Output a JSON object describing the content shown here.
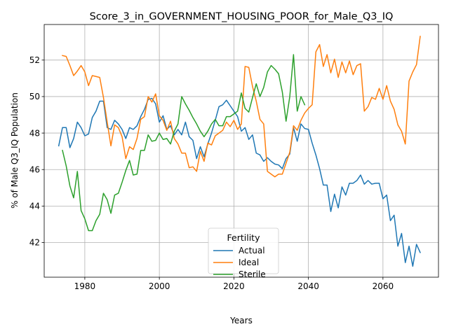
{
  "chart_data": {
    "type": "line",
    "title": "Score_3_in_GOVERNMENT_HOUSING_POOR_for_Male_Q3_IQ",
    "xlabel": "Years",
    "ylabel": "% of Male Q3_IQ Population",
    "xlim": [
      1969.1,
      2074.9
    ],
    "ylim": [
      40.1,
      53.95
    ],
    "xticks": [
      1980,
      2000,
      2020,
      2040,
      2060
    ],
    "yticks": [
      42,
      44,
      46,
      48,
      50,
      52
    ],
    "grid": true,
    "legend": {
      "title": "Fertility",
      "placement": "lower-center"
    },
    "series": [
      {
        "name": "Actual",
        "color": "#1f77b4",
        "points": [
          [
            1973,
            47.3
          ],
          [
            1974,
            48.3
          ],
          [
            1975,
            48.3
          ],
          [
            1976,
            47.2
          ],
          [
            1977,
            47.7
          ],
          [
            1978,
            48.6
          ],
          [
            1979,
            48.3
          ],
          [
            1980,
            47.85
          ],
          [
            1981,
            47.95
          ],
          [
            1982,
            48.85
          ],
          [
            1983,
            49.2
          ],
          [
            1984,
            49.75
          ],
          [
            1985,
            49.75
          ],
          [
            1986,
            48.3
          ],
          [
            1987,
            48.2
          ],
          [
            1988,
            48.7
          ],
          [
            1989,
            48.5
          ],
          [
            1990,
            48.2
          ],
          [
            1991,
            47.7
          ],
          [
            1992,
            48.3
          ],
          [
            1993,
            48.2
          ],
          [
            1994,
            48.4
          ],
          [
            1995,
            48.9
          ],
          [
            1996,
            49.3
          ],
          [
            1997,
            49.85
          ],
          [
            1998,
            49.9
          ],
          [
            1999,
            49.6
          ],
          [
            2000,
            48.6
          ],
          [
            2001,
            48.95
          ],
          [
            2002,
            48.2
          ],
          [
            2003,
            48.4
          ],
          [
            2004,
            47.9
          ],
          [
            2005,
            48.2
          ],
          [
            2006,
            47.9
          ],
          [
            2007,
            48.6
          ],
          [
            2008,
            47.8
          ],
          [
            2009,
            47.6
          ],
          [
            2010,
            46.6
          ],
          [
            2011,
            47.25
          ],
          [
            2012,
            46.7
          ],
          [
            2013,
            47.4
          ],
          [
            2014,
            48.0
          ],
          [
            2015,
            48.7
          ],
          [
            2016,
            49.45
          ],
          [
            2017,
            49.55
          ],
          [
            2018,
            49.8
          ],
          [
            2019,
            49.5
          ],
          [
            2020,
            49.2
          ],
          [
            2021,
            48.9
          ],
          [
            2022,
            48.1
          ],
          [
            2023,
            48.3
          ],
          [
            2024,
            47.65
          ],
          [
            2025,
            47.9
          ],
          [
            2026,
            46.9
          ],
          [
            2027,
            46.8
          ],
          [
            2028,
            46.45
          ],
          [
            2029,
            46.65
          ],
          [
            2030,
            46.45
          ],
          [
            2031,
            46.3
          ],
          [
            2032,
            46.25
          ],
          [
            2033,
            46.05
          ],
          [
            2034,
            46.6
          ],
          [
            2035,
            46.85
          ],
          [
            2036,
            48.3
          ],
          [
            2037,
            47.55
          ],
          [
            2038,
            48.5
          ],
          [
            2039,
            48.25
          ],
          [
            2040,
            48.2
          ],
          [
            2041,
            47.45
          ],
          [
            2042,
            46.8
          ],
          [
            2043,
            46.05
          ],
          [
            2044,
            45.15
          ],
          [
            2045,
            45.15
          ],
          [
            2046,
            43.7
          ],
          [
            2047,
            44.65
          ],
          [
            2048,
            43.9
          ],
          [
            2049,
            45.05
          ],
          [
            2050,
            44.6
          ],
          [
            2051,
            45.25
          ],
          [
            2052,
            45.25
          ],
          [
            2053,
            45.4
          ],
          [
            2054,
            45.7
          ],
          [
            2055,
            45.2
          ],
          [
            2056,
            45.4
          ],
          [
            2057,
            45.2
          ],
          [
            2058,
            45.25
          ],
          [
            2059,
            45.25
          ],
          [
            2060,
            44.4
          ],
          [
            2061,
            44.6
          ],
          [
            2062,
            43.2
          ],
          [
            2063,
            43.5
          ],
          [
            2064,
            41.8
          ],
          [
            2065,
            42.5
          ],
          [
            2066,
            40.9
          ],
          [
            2067,
            41.8
          ],
          [
            2068,
            40.7
          ],
          [
            2069,
            41.9
          ],
          [
            2070,
            41.45
          ]
        ]
      },
      {
        "name": "Ideal",
        "color": "#ff7f0e",
        "points": [
          [
            1974,
            52.25
          ],
          [
            1975,
            52.2
          ],
          [
            1976,
            51.7
          ],
          [
            1977,
            51.15
          ],
          [
            1978,
            51.4
          ],
          [
            1979,
            51.7
          ],
          [
            1980,
            51.35
          ],
          [
            1981,
            50.6
          ],
          [
            1982,
            51.15
          ],
          [
            1983,
            51.1
          ],
          [
            1984,
            51.05
          ],
          [
            1985,
            49.95
          ],
          [
            1986,
            48.6
          ],
          [
            1987,
            47.3
          ],
          [
            1988,
            48.45
          ],
          [
            1989,
            48.3
          ],
          [
            1990,
            47.8
          ],
          [
            1991,
            46.6
          ],
          [
            1992,
            47.25
          ],
          [
            1993,
            47.1
          ],
          [
            1994,
            47.7
          ],
          [
            1995,
            48.75
          ],
          [
            1996,
            48.9
          ],
          [
            1997,
            50.0
          ],
          [
            1998,
            49.7
          ],
          [
            1999,
            50.15
          ],
          [
            2000,
            48.95
          ],
          [
            2001,
            48.7
          ],
          [
            2002,
            48.15
          ],
          [
            2003,
            48.65
          ],
          [
            2004,
            47.7
          ],
          [
            2005,
            47.4
          ],
          [
            2006,
            46.9
          ],
          [
            2007,
            46.9
          ],
          [
            2008,
            46.1
          ],
          [
            2009,
            46.15
          ],
          [
            2010,
            45.9
          ],
          [
            2011,
            47.0
          ],
          [
            2012,
            46.45
          ],
          [
            2013,
            47.45
          ],
          [
            2014,
            47.35
          ],
          [
            2015,
            47.85
          ],
          [
            2016,
            48.0
          ],
          [
            2017,
            48.15
          ],
          [
            2018,
            48.6
          ],
          [
            2019,
            48.35
          ],
          [
            2020,
            48.7
          ],
          [
            2021,
            48.2
          ],
          [
            2022,
            48.5
          ],
          [
            2023,
            51.65
          ],
          [
            2024,
            51.6
          ],
          [
            2025,
            50.55
          ],
          [
            2026,
            49.75
          ],
          [
            2027,
            48.75
          ],
          [
            2028,
            48.5
          ],
          [
            2029,
            45.9
          ],
          [
            2030,
            45.75
          ],
          [
            2031,
            45.6
          ],
          [
            2032,
            45.75
          ],
          [
            2033,
            45.75
          ],
          [
            2034,
            46.35
          ],
          [
            2035,
            46.95
          ],
          [
            2036,
            48.4
          ],
          [
            2037,
            48.15
          ],
          [
            2038,
            48.7
          ],
          [
            2039,
            49.1
          ],
          [
            2040,
            49.35
          ],
          [
            2041,
            49.55
          ],
          [
            2042,
            52.45
          ],
          [
            2043,
            52.85
          ],
          [
            2044,
            51.65
          ],
          [
            2045,
            52.3
          ],
          [
            2046,
            51.3
          ],
          [
            2047,
            52.05
          ],
          [
            2048,
            51.05
          ],
          [
            2049,
            51.9
          ],
          [
            2050,
            51.3
          ],
          [
            2051,
            51.95
          ],
          [
            2052,
            51.2
          ],
          [
            2053,
            51.7
          ],
          [
            2054,
            51.8
          ],
          [
            2055,
            49.2
          ],
          [
            2056,
            49.45
          ],
          [
            2057,
            49.95
          ],
          [
            2058,
            49.85
          ],
          [
            2059,
            50.45
          ],
          [
            2060,
            49.85
          ],
          [
            2061,
            50.6
          ],
          [
            2062,
            49.75
          ],
          [
            2063,
            49.3
          ],
          [
            2064,
            48.45
          ],
          [
            2065,
            48.1
          ],
          [
            2066,
            47.4
          ],
          [
            2067,
            50.85
          ],
          [
            2068,
            51.35
          ],
          [
            2069,
            51.75
          ],
          [
            2070,
            53.3
          ]
        ]
      },
      {
        "name": "Sterile",
        "color": "#2ca02c",
        "points": [
          [
            1974,
            47.05
          ],
          [
            1975,
            46.2
          ],
          [
            1976,
            45.1
          ],
          [
            1977,
            44.45
          ],
          [
            1978,
            45.9
          ],
          [
            1979,
            43.75
          ],
          [
            1980,
            43.3
          ],
          [
            1981,
            42.65
          ],
          [
            1982,
            42.65
          ],
          [
            1983,
            43.2
          ],
          [
            1984,
            43.55
          ],
          [
            1985,
            44.7
          ],
          [
            1986,
            44.35
          ],
          [
            1987,
            43.6
          ],
          [
            1988,
            44.6
          ],
          [
            1989,
            44.7
          ],
          [
            1990,
            45.3
          ],
          [
            1991,
            45.95
          ],
          [
            1992,
            46.5
          ],
          [
            1993,
            45.7
          ],
          [
            1994,
            45.75
          ],
          [
            1995,
            47.05
          ],
          [
            1996,
            47.05
          ],
          [
            1997,
            47.9
          ],
          [
            1998,
            47.55
          ],
          [
            1999,
            47.6
          ],
          [
            2000,
            48.0
          ],
          [
            2001,
            47.65
          ],
          [
            2002,
            47.7
          ],
          [
            2003,
            47.4
          ],
          [
            2004,
            48.1
          ],
          [
            2005,
            48.5
          ],
          [
            2006,
            50.0
          ],
          [
            2007,
            49.6
          ],
          [
            2008,
            49.25
          ],
          [
            2009,
            48.85
          ],
          [
            2010,
            48.5
          ],
          [
            2011,
            48.1
          ],
          [
            2012,
            47.8
          ],
          [
            2013,
            48.1
          ],
          [
            2014,
            48.5
          ],
          [
            2015,
            48.75
          ],
          [
            2016,
            48.4
          ],
          [
            2017,
            48.4
          ],
          [
            2018,
            48.9
          ],
          [
            2019,
            48.9
          ],
          [
            2020,
            49.05
          ],
          [
            2021,
            49.2
          ],
          [
            2022,
            50.2
          ],
          [
            2023,
            49.35
          ],
          [
            2024,
            49.15
          ],
          [
            2025,
            49.95
          ],
          [
            2026,
            50.7
          ],
          [
            2027,
            50.0
          ],
          [
            2028,
            50.5
          ],
          [
            2029,
            51.35
          ],
          [
            2030,
            51.7
          ],
          [
            2031,
            51.5
          ],
          [
            2032,
            51.25
          ],
          [
            2033,
            50.25
          ],
          [
            2034,
            48.65
          ],
          [
            2035,
            50.0
          ],
          [
            2036,
            52.3
          ],
          [
            2037,
            49.2
          ],
          [
            2038,
            50.0
          ],
          [
            2039,
            49.55
          ]
        ]
      }
    ]
  }
}
